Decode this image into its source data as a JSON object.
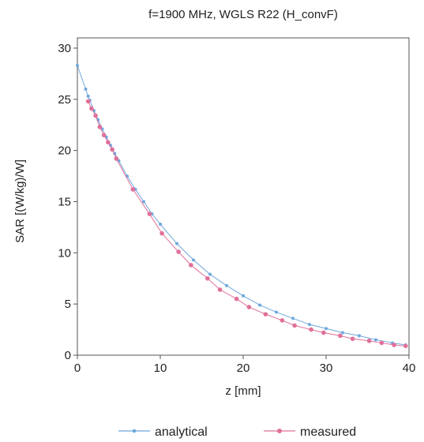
{
  "chart_data": {
    "type": "line",
    "title": "f=1900 MHz, WGLS R22 (H_convF)",
    "xlabel": "z [mm]",
    "ylabel": "SAR [(W/kg)/W]",
    "xlim": [
      0,
      40
    ],
    "ylim": [
      0,
      31
    ],
    "xticks": [
      0,
      10,
      20,
      30,
      40
    ],
    "yticks": [
      0,
      5,
      10,
      15,
      20,
      25,
      30
    ],
    "grid": false,
    "legend_position": "bottom",
    "colors": {
      "analytical": "#6fa8dc",
      "measured": "#e0709a"
    },
    "series": [
      {
        "name": "analytical",
        "x": [
          0,
          1,
          1.3,
          1.5,
          2,
          2.5,
          3,
          3.5,
          4,
          4.5,
          5,
          6,
          7,
          8,
          9,
          10,
          12,
          14,
          16,
          18,
          20,
          22,
          24,
          26,
          28,
          30,
          32,
          34,
          36,
          38,
          39.6
        ],
        "y": [
          28.3,
          26.0,
          25.3,
          24.9,
          23.9,
          23.0,
          22.1,
          21.3,
          20.5,
          19.7,
          19.0,
          17.5,
          16.2,
          15.0,
          13.8,
          12.8,
          10.9,
          9.3,
          7.9,
          6.8,
          5.8,
          4.9,
          4.2,
          3.6,
          3.0,
          2.6,
          2.2,
          1.9,
          1.5,
          1.2,
          1.0
        ]
      },
      {
        "name": "measured",
        "x": [
          1.3,
          1.7,
          2.2,
          2.7,
          3.2,
          3.7,
          4.2,
          4.7,
          6.7,
          8.7,
          10.2,
          12.2,
          13.7,
          15.7,
          17.2,
          19.2,
          20.7,
          22.7,
          24.7,
          26.2,
          28.2,
          29.7,
          31.7,
          33.2,
          35.2,
          36.7,
          38.2,
          39.6
        ],
        "y": [
          24.8,
          24.1,
          23.4,
          22.3,
          21.5,
          20.8,
          20.1,
          19.2,
          16.2,
          13.8,
          11.9,
          10.1,
          8.8,
          7.5,
          6.4,
          5.5,
          4.7,
          4.0,
          3.4,
          2.9,
          2.5,
          2.2,
          1.9,
          1.6,
          1.4,
          1.2,
          1.0,
          0.9
        ]
      }
    ]
  }
}
